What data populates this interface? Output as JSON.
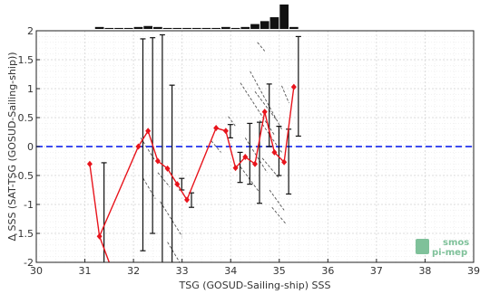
{
  "chart_data": {
    "type": "line",
    "title": "",
    "xlabel": "TSG (GOSUD-Sailing-ship) SSS",
    "ylabel": "Δ SSS (SAT-TSG (GOSUD-Sailing-ship))",
    "xlim": [
      30,
      39
    ],
    "ylim": [
      -2,
      2
    ],
    "xticks": [
      "30",
      "31",
      "32",
      "33",
      "34",
      "35",
      "36",
      "37",
      "38",
      "39"
    ],
    "yticks": [
      "-2",
      "-1.5",
      "-1",
      "-0.5",
      "0",
      "0.5",
      "1",
      "1.5",
      "2"
    ],
    "grid": true,
    "reference_line": {
      "y": 0,
      "color": "#2233ee",
      "style": "dashed"
    },
    "series": [
      {
        "x": [
          31.1,
          31.3,
          32.1,
          32.3,
          32.5,
          32.7,
          32.9,
          33.1,
          33.7,
          33.9,
          34.1,
          34.3,
          34.5,
          34.7,
          34.9,
          35.1,
          35.3
        ],
        "values": [
          -0.3,
          -1.55,
          0.0,
          0.27,
          -0.25,
          -0.38,
          -0.65,
          -0.92,
          0.32,
          0.27,
          -0.37,
          -0.18,
          -0.3,
          0.6,
          -0.1,
          -0.27,
          1.03
        ],
        "error_low": [
          null,
          -2.0,
          -1.8,
          -1.5,
          -2.0,
          -2.0,
          -0.75,
          -1.05,
          null,
          0.15,
          -0.62,
          -0.65,
          -0.98,
          0.0,
          -0.5,
          -0.82,
          0.18
        ],
        "error_high": [
          null,
          -0.28,
          1.86,
          1.88,
          1.93,
          1.06,
          -0.55,
          -0.8,
          null,
          0.38,
          -0.1,
          0.4,
          0.42,
          1.08,
          0.35,
          0.3,
          1.9
        ],
        "color": "#e8141c"
      }
    ],
    "histogram": {
      "x": [
        31.3,
        31.5,
        31.7,
        31.9,
        32.1,
        32.3,
        32.5,
        32.7,
        32.9,
        33.1,
        33.3,
        33.5,
        33.7,
        33.9,
        34.1,
        34.3,
        34.5,
        34.7,
        34.9,
        35.1,
        35.3
      ],
      "counts": [
        2,
        1,
        1,
        1,
        2,
        3,
        2,
        1,
        1,
        1,
        1,
        1,
        1,
        2,
        1,
        2,
        5,
        8,
        12,
        25,
        2
      ]
    },
    "scatter_streaks": [
      [
        [
          32.15,
          0.15
        ],
        [
          32.45,
          -0.25
        ]
      ],
      [
        [
          32.2,
          -0.55
        ],
        [
          32.45,
          -0.9
        ]
      ],
      [
        [
          32.55,
          -0.95
        ],
        [
          33.0,
          -1.55
        ]
      ],
      [
        [
          32.7,
          -1.65
        ],
        [
          32.95,
          -2.0
        ]
      ],
      [
        [
          32.5,
          -0.45
        ],
        [
          32.75,
          -0.7
        ]
      ],
      [
        [
          34.2,
          1.1
        ],
        [
          34.9,
          0.2
        ]
      ],
      [
        [
          34.4,
          1.3
        ],
        [
          35.05,
          0.3
        ]
      ],
      [
        [
          34.5,
          0.95
        ],
        [
          34.95,
          0.45
        ]
      ],
      [
        [
          34.6,
          0.45
        ],
        [
          35.05,
          -0.1
        ]
      ],
      [
        [
          34.3,
          0.15
        ],
        [
          34.75,
          -0.45
        ]
      ],
      [
        [
          34.2,
          -0.35
        ],
        [
          34.6,
          -0.8
        ]
      ],
      [
        [
          34.65,
          -0.2
        ],
        [
          35.0,
          -0.55
        ]
      ],
      [
        [
          34.8,
          -0.75
        ],
        [
          35.1,
          -1.1
        ]
      ],
      [
        [
          34.85,
          -1.05
        ],
        [
          35.15,
          -1.35
        ]
      ],
      [
        [
          33.95,
          0.52
        ],
        [
          34.1,
          0.35
        ]
      ],
      [
        [
          33.6,
          0.1
        ],
        [
          33.8,
          -0.1
        ]
      ],
      [
        [
          34.55,
          1.8
        ],
        [
          34.7,
          1.65
        ]
      ],
      [
        [
          35.05,
          1.05
        ],
        [
          35.2,
          0.75
        ]
      ]
    ],
    "colors": {
      "line": "#e8141c",
      "errorbar": "#111111",
      "zero_line": "#2233ee",
      "histogram": "#111111",
      "logo": "#7fc19a"
    }
  },
  "logo": {
    "line1": "smos",
    "line2": "pi-mep"
  }
}
